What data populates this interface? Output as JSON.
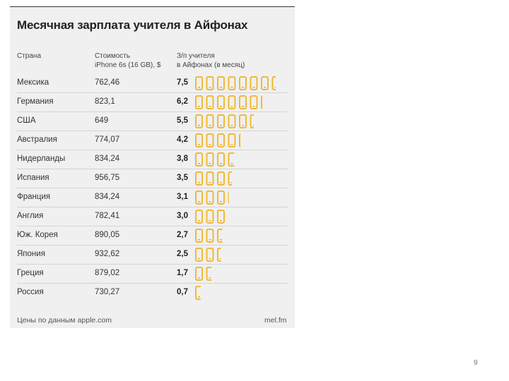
{
  "title": "Месячная зарплата учителя в Айфонах",
  "headers": {
    "country": "Страна",
    "price_line1": "Стоимость",
    "price_line2": "iPhone 6s (16 GB), $",
    "months_line1": "З/п учителя",
    "months_line2": "в Айфонах (в месяц)"
  },
  "footer": {
    "source": "Цены по данным apple.com",
    "brand": "mel.fm"
  },
  "page_number": "9",
  "colors": {
    "phone": "#f0b323",
    "background": "#f0f0f0",
    "divider": "#d4d4d4"
  },
  "chart_data": {
    "type": "table",
    "title": "Месячная зарплата учителя в Айфонах",
    "columns": [
      "Страна",
      "Стоимость iPhone 6s (16 GB), $",
      "З/п учителя в Айфонах (в месяц)"
    ],
    "rows": [
      {
        "country": "Мексика",
        "price": "762,46",
        "iphones": "7,5",
        "value": 7.5
      },
      {
        "country": "Германия",
        "price": "823,1",
        "iphones": "6,2",
        "value": 6.2
      },
      {
        "country": "США",
        "price": "649",
        "iphones": "5,5",
        "value": 5.5
      },
      {
        "country": "Австралия",
        "price": "774,07",
        "iphones": "4,2",
        "value": 4.2
      },
      {
        "country": "Нидерланды",
        "price": "834,24",
        "iphones": "3,8",
        "value": 3.8
      },
      {
        "country": "Испания",
        "price": "956,75",
        "iphones": "3,5",
        "value": 3.5
      },
      {
        "country": "Франция",
        "price": "834,24",
        "iphones": "3,1",
        "value": 3.1
      },
      {
        "country": "Англия",
        "price": "782,41",
        "iphones": "3,0",
        "value": 3.0
      },
      {
        "country": "Юж. Корея",
        "price": "890,05",
        "iphones": "2,7",
        "value": 2.7
      },
      {
        "country": "Япония",
        "price": "932,62",
        "iphones": "2,5",
        "value": 2.5
      },
      {
        "country": "Греция",
        "price": "879,02",
        "iphones": "1,7",
        "value": 1.7
      },
      {
        "country": "Россия",
        "price": "730,27",
        "iphones": "0,7",
        "value": 0.7
      }
    ]
  }
}
